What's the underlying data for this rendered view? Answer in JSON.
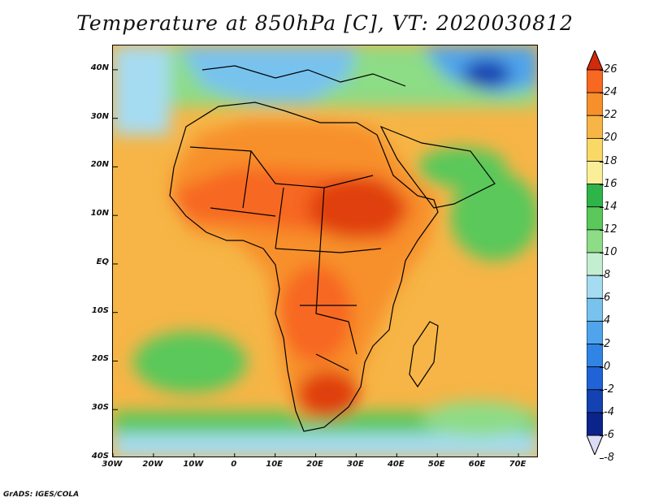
{
  "title": "Temperature at 850hPa [C], VT: 2020030812",
  "credit": "GrADS: IGES/COLA",
  "map": {
    "lon_range": [
      -30,
      75
    ],
    "lat_range": [
      -40,
      45
    ],
    "lat_ticks": [
      "40N",
      "30N",
      "20N",
      "10N",
      "EQ",
      "10S",
      "20S",
      "30S",
      "40S"
    ],
    "lat_tick_values": [
      40,
      30,
      20,
      10,
      0,
      -10,
      -20,
      -30,
      -40
    ],
    "lon_ticks": [
      "30W",
      "20W",
      "10W",
      "0",
      "10E",
      "20E",
      "30E",
      "40E",
      "50E",
      "60E",
      "70E"
    ],
    "lon_tick_values": [
      -30,
      -20,
      -10,
      0,
      10,
      20,
      30,
      40,
      50,
      60,
      70
    ]
  },
  "colorbar": {
    "labels": [
      "26",
      "24",
      "22",
      "20",
      "18",
      "16",
      "14",
      "12",
      "10",
      "8",
      "6",
      "4",
      "2",
      "0",
      "-2",
      "-4",
      "-6",
      "-8"
    ],
    "colors": [
      "#f03a0f",
      "#f76820",
      "#f7902a",
      "#f6b546",
      "#f9d866",
      "#fbee99",
      "#2fb44a",
      "#5ac85a",
      "#8ddc86",
      "#c3eed0",
      "#a6dcf2",
      "#78c2ee",
      "#50a4ec",
      "#2f84e4",
      "#1f63d6",
      "#1442b2",
      "#0b248b",
      "#d8d8f4"
    ],
    "top_arrow_color": "#d22a0a",
    "bottom_arrow_color": "#dcdcf6"
  },
  "palette": {
    "ocean": "#f6b546",
    "hot": "#e0400e",
    "warm": "#f7902a",
    "land_mid": "#f6a23a",
    "green": "#5ac85a",
    "light_green": "#8ddc86",
    "cold": "#78c2ee",
    "cool_blue": "#a6dcf2",
    "deep_blue": "#1442b2",
    "coast": "#000000"
  }
}
